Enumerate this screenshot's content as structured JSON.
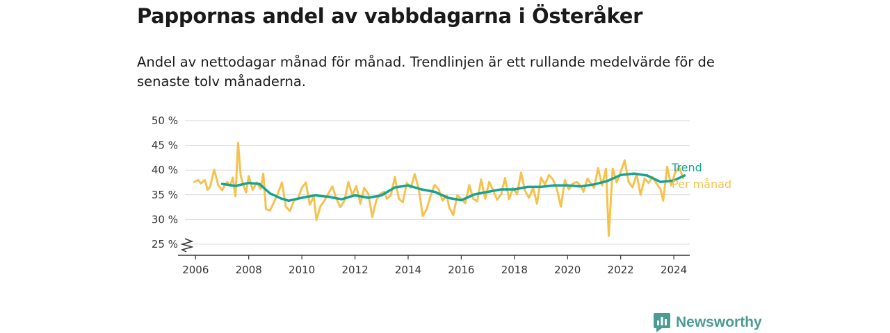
{
  "title": "Pappornas andel av vabbdagarna i Österåker",
  "subtitle": "Andel av nettodagar månad för månad. Trendlinjen är ett rullande medelvärde för de senaste tolv månaderna.",
  "brand": {
    "name": "Newsworthy",
    "icon": "newsworthy-logo-icon",
    "color": "#4a9c94"
  },
  "colors": {
    "trend": "#16a394",
    "monthly": "#f5c24c",
    "grid": "#d9d9d9",
    "axis": "#333333"
  },
  "chart_data": {
    "type": "line",
    "title": "Pappornas andel av vabbdagarna i Österåker",
    "xlabel": "",
    "ylabel": "",
    "xlim": [
      2005.6,
      2024.6
    ],
    "ylim": [
      25,
      50
    ],
    "grid": true,
    "axis_break": true,
    "x_ticks": [
      2006,
      2008,
      2010,
      2012,
      2014,
      2016,
      2018,
      2020,
      2022,
      2024
    ],
    "y_ticks": [
      25,
      30,
      35,
      40,
      45,
      50
    ],
    "y_tick_labels": [
      "25 %",
      "30 %",
      "35 %",
      "40 %",
      "45 %",
      "50 %"
    ],
    "series": [
      {
        "name": "Trend",
        "color": "#16a394",
        "x": [
          2007.0,
          2007.5,
          2008.0,
          2008.4,
          2008.8,
          2009.2,
          2009.5,
          2010.0,
          2010.5,
          2011.0,
          2011.5,
          2012.0,
          2012.5,
          2013.0,
          2013.5,
          2014.0,
          2014.5,
          2015.0,
          2015.5,
          2016.0,
          2016.5,
          2017.0,
          2017.5,
          2018.0,
          2018.5,
          2019.0,
          2019.5,
          2020.0,
          2020.5,
          2021.0,
          2021.5,
          2022.0,
          2022.5,
          2023.0,
          2023.5,
          2024.0,
          2024.4
        ],
        "y": [
          37.2,
          36.8,
          37.4,
          37.2,
          35.3,
          34.3,
          33.8,
          34.4,
          34.9,
          34.6,
          34.1,
          34.9,
          34.4,
          34.9,
          36.5,
          36.9,
          36.1,
          35.6,
          34.4,
          33.9,
          35.1,
          35.6,
          36.1,
          36.1,
          36.6,
          36.6,
          36.9,
          36.9,
          36.7,
          37.1,
          37.8,
          39.0,
          39.3,
          38.9,
          37.6,
          37.9,
          38.9
        ]
      },
      {
        "name": "Per månad",
        "color": "#f5c24c",
        "x": [
          2005.95,
          2006.1,
          2006.2,
          2006.35,
          2006.45,
          2006.55,
          2006.7,
          2006.85,
          2007.0,
          2007.1,
          2007.2,
          2007.3,
          2007.4,
          2007.5,
          2007.6,
          2007.7,
          2007.8,
          2007.9,
          2008.0,
          2008.15,
          2008.3,
          2008.45,
          2008.55,
          2008.65,
          2008.8,
          2008.95,
          2009.1,
          2009.25,
          2009.4,
          2009.55,
          2009.7,
          2009.85,
          2010.0,
          2010.15,
          2010.3,
          2010.45,
          2010.55,
          2010.7,
          2010.85,
          2011.0,
          2011.15,
          2011.3,
          2011.45,
          2011.6,
          2011.75,
          2011.9,
          2012.05,
          2012.2,
          2012.35,
          2012.5,
          2012.65,
          2012.8,
          2012.95,
          2013.1,
          2013.2,
          2013.35,
          2013.5,
          2013.65,
          2013.8,
          2013.95,
          2014.1,
          2014.25,
          2014.4,
          2014.55,
          2014.7,
          2014.85,
          2015.0,
          2015.15,
          2015.3,
          2015.45,
          2015.55,
          2015.7,
          2015.85,
          2016.0,
          2016.15,
          2016.3,
          2016.45,
          2016.6,
          2016.75,
          2016.9,
          2017.05,
          2017.2,
          2017.35,
          2017.5,
          2017.65,
          2017.8,
          2017.95,
          2018.1,
          2018.25,
          2018.4,
          2018.55,
          2018.7,
          2018.85,
          2019.0,
          2019.15,
          2019.3,
          2019.45,
          2019.6,
          2019.75,
          2019.9,
          2020.05,
          2020.2,
          2020.35,
          2020.5,
          2020.6,
          2020.75,
          2020.85,
          2021.0,
          2021.15,
          2021.3,
          2021.45,
          2021.55,
          2021.7,
          2021.85,
          2022.0,
          2022.15,
          2022.3,
          2022.45,
          2022.6,
          2022.75,
          2022.9,
          2023.05,
          2023.2,
          2023.35,
          2023.5,
          2023.6,
          2023.75,
          2023.9,
          2024.05,
          2024.2,
          2024.35
        ],
        "y": [
          37.6,
          38.0,
          37.3,
          38.0,
          36.0,
          36.7,
          40.1,
          37.0,
          35.9,
          37.0,
          37.6,
          36.8,
          38.5,
          34.7,
          45.5,
          38.8,
          37.0,
          35.5,
          38.8,
          36.0,
          37.5,
          36.2,
          39.3,
          32.1,
          31.8,
          33.5,
          35.3,
          37.5,
          32.6,
          31.7,
          33.8,
          34.2,
          36.4,
          37.5,
          33.0,
          34.7,
          29.9,
          32.7,
          33.8,
          35.3,
          36.7,
          34.2,
          32.5,
          33.8,
          37.6,
          34.9,
          36.8,
          33.2,
          36.4,
          35.2,
          30.5,
          33.8,
          35.2,
          35.6,
          34.2,
          34.9,
          38.6,
          34.2,
          33.5,
          37.4,
          36.4,
          39.2,
          36.2,
          30.7,
          32.1,
          34.9,
          37.0,
          36.1,
          33.8,
          34.9,
          32.4,
          30.9,
          34.9,
          34.2,
          33.3,
          37.0,
          34.2,
          33.7,
          38.1,
          34.2,
          37.6,
          35.9,
          34.0,
          35.1,
          38.4,
          34.1,
          36.4,
          35.1,
          39.5,
          35.8,
          34.4,
          36.4,
          33.2,
          38.5,
          37.1,
          39.0,
          38.1,
          36.2,
          32.6,
          38.0,
          36.1,
          37.3,
          37.6,
          36.8,
          35.6,
          38.3,
          37.5,
          36.4,
          40.4,
          36.9,
          40.3,
          26.7,
          40.3,
          37.5,
          39.6,
          42.0,
          37.6,
          36.5,
          39.2,
          35.0,
          38.3,
          37.4,
          38.6,
          37.3,
          36.1,
          33.8,
          40.7,
          36.9,
          39.5,
          40.6,
          38.4
        ]
      }
    ]
  }
}
